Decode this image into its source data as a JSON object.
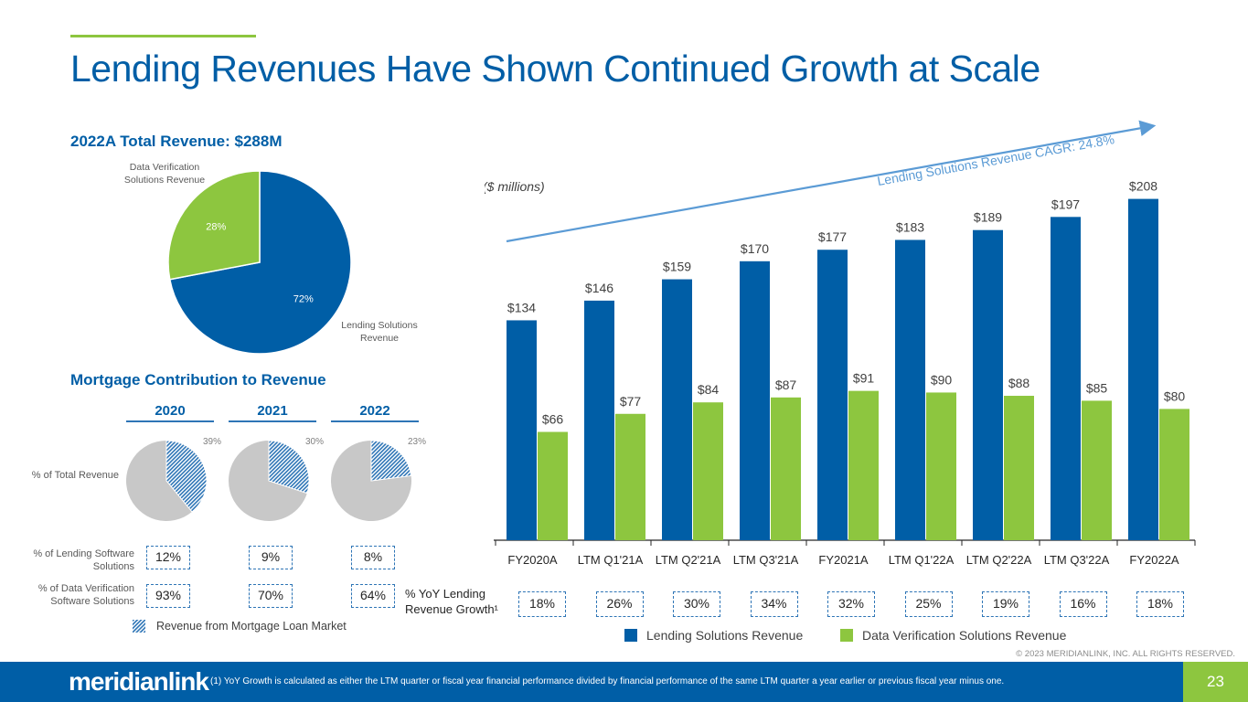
{
  "slide": {
    "title": "Lending Revenues Have Shown Continued Growth at Scale",
    "page_number": "23",
    "copyright": "© 2023 MERIDIANLINK, INC. ALL RIGHTS RESERVED.",
    "footnote": "(1)    YoY Growth is calculated as either the LTM quarter or fiscal year financial performance divided by financial performance of the same LTM quarter a year earlier or previous fiscal year minus one.",
    "logo_text": "meridianlink",
    "colors": {
      "blue": "#005ea6",
      "green": "#8dc63f",
      "grey": "#c8c8c8",
      "accent_line": "#5b9bd5"
    }
  },
  "total_revenue": {
    "title": "2022A Total Revenue: $288M",
    "label_dv": "Data Verification Solutions Revenue",
    "label_lending": "Lending Solutions Revenue"
  },
  "mortgage": {
    "title": "Mortgage Contribution to Revenue",
    "row_total_label": "% of Total Revenue",
    "row_lending_label": "% of Lending Software Solutions",
    "row_dv_label": "% of Data Verification Software Solutions",
    "legend": "Revenue from Mortgage Loan Market",
    "years": [
      {
        "year": "2020",
        "total_pct": 39,
        "total_label": "39%",
        "lending": "12%",
        "dv": "93%"
      },
      {
        "year": "2021",
        "total_pct": 30,
        "total_label": "30%",
        "lending": "9%",
        "dv": "70%"
      },
      {
        "year": "2022",
        "total_pct": 23,
        "total_label": "23%",
        "lending": "8%",
        "dv": "64%"
      }
    ]
  },
  "growth": {
    "label": "% YoY Lending Revenue Growth¹",
    "values": [
      "18%",
      "26%",
      "30%",
      "34%",
      "32%",
      "25%",
      "19%",
      "16%",
      "18%"
    ]
  },
  "chart_data": [
    {
      "type": "pie",
      "title": "2022A Total Revenue: $288M",
      "labels": [
        "Lending Solutions Revenue",
        "Data Verification Solutions Revenue"
      ],
      "values": [
        72,
        28
      ],
      "value_labels": [
        "72%",
        "28%"
      ]
    },
    {
      "type": "bar",
      "title": "",
      "units_note": "($ millions)",
      "annotation": "Lending Solutions Revenue CAGR: 24.8%",
      "categories": [
        "FY2020A",
        "LTM Q1'21A",
        "LTM Q2'21A",
        "LTM Q3'21A",
        "FY2021A",
        "LTM Q1'22A",
        "LTM Q2'22A",
        "LTM Q3'22A",
        "FY2022A"
      ],
      "series": [
        {
          "name": "Lending Solutions Revenue",
          "values": [
            134,
            146,
            159,
            170,
            177,
            183,
            189,
            197,
            208
          ],
          "labels": [
            "$134",
            "$146",
            "$159",
            "$170",
            "$177",
            "$183",
            "$189",
            "$197",
            "$208"
          ]
        },
        {
          "name": "Data Verification Solutions Revenue",
          "values": [
            66,
            77,
            84,
            87,
            91,
            90,
            88,
            85,
            80
          ],
          "labels": [
            "$66",
            "$77",
            "$84",
            "$87",
            "$91",
            "$90",
            "$88",
            "$85",
            "$80"
          ]
        }
      ],
      "ylim": [
        0,
        210
      ],
      "grid": false,
      "legend": "bottom"
    }
  ]
}
